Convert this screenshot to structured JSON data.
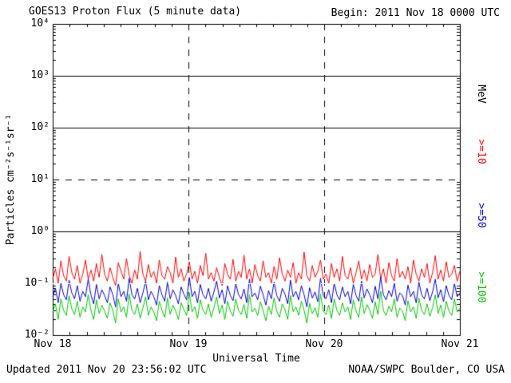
{
  "header": {
    "title": "GOES13 Proton Flux (5 minute data)",
    "begin": "Begin: 2011 Nov 18 0000 UTC"
  },
  "axes": {
    "y_label": "Particles cm⁻²s⁻¹sr⁻¹",
    "x_label": "Universal Time",
    "y_tick_labels": [
      "10⁴",
      "10³",
      "10²",
      "10¹",
      "10⁰",
      "10⁻¹",
      "10⁻²"
    ],
    "x_tick_labels": [
      "Nov 18",
      "Nov 19",
      "Nov 20",
      "Nov 21"
    ]
  },
  "right_labels": {
    "unit": "MeV",
    "items": [
      {
        "text": ">=10",
        "color": "#ff0000"
      },
      {
        "text": ">=50",
        "color": "#0000cc"
      },
      {
        "text": ">=100",
        "color": "#00c800"
      }
    ]
  },
  "footer": {
    "updated": "Updated 2011 Nov 20 23:56:02 UTC",
    "credit": "NOAA/SWPC Boulder, CO USA"
  },
  "chart_data": {
    "type": "line",
    "title": "GOES13 Proton Flux (5 minute data)",
    "xlabel": "Universal Time",
    "ylabel": "Particles cm-2 s-1 sr-1",
    "y_scale": "log",
    "ylim": [
      0.01,
      10000
    ],
    "x_ticks": [
      "Nov 18",
      "Nov 19",
      "Nov 20",
      "Nov 21"
    ],
    "y_gridlines": {
      "solid": [
        1000,
        100,
        1
      ],
      "dashed_black": [
        10
      ],
      "dashed_white_overlay": [
        0.1
      ]
    },
    "x_day_lines": [
      1,
      2
    ],
    "legend_position": "right",
    "series": [
      {
        "name": ">=10 MeV",
        "color": "#ff0000",
        "values": [
          0.12,
          0.19,
          0.1,
          0.27,
          0.14,
          0.11,
          0.33,
          0.16,
          0.12,
          0.22,
          0.1,
          0.15,
          0.28,
          0.12,
          0.18,
          0.11,
          0.24,
          0.13,
          0.36,
          0.15,
          0.11,
          0.2,
          0.13,
          0.09,
          0.25,
          0.17,
          0.12,
          0.3,
          0.14,
          0.1,
          0.18,
          0.12,
          0.41,
          0.15,
          0.11,
          0.23,
          0.13,
          0.17,
          0.1,
          0.28,
          0.14,
          0.12,
          0.21,
          0.16,
          0.1,
          0.32,
          0.13,
          0.19,
          0.11,
          0.15,
          0.26,
          0.12,
          0.17,
          0.1,
          0.22,
          0.14,
          0.38,
          0.12,
          0.16,
          0.11,
          0.2,
          0.13,
          0.09,
          0.24,
          0.15,
          0.12,
          0.29,
          0.11,
          0.17,
          0.13,
          0.35,
          0.12,
          0.19,
          0.1,
          0.23,
          0.14,
          0.11,
          0.27,
          0.13,
          0.16,
          0.1,
          0.21,
          0.12,
          0.31,
          0.15,
          0.11,
          0.18,
          0.13,
          0.25,
          0.1,
          0.16,
          0.12,
          0.4,
          0.14,
          0.11,
          0.22,
          0.13,
          0.17,
          0.28,
          0.12,
          0.15,
          0.1,
          0.24,
          0.13,
          0.19,
          0.11,
          0.33,
          0.14,
          0.12,
          0.2,
          0.1,
          0.16,
          0.27,
          0.12,
          0.18,
          0.11,
          0.23,
          0.13,
          0.15,
          0.36,
          0.12,
          0.19,
          0.1,
          0.25,
          0.14,
          0.11,
          0.3,
          0.13,
          0.17,
          0.12,
          0.21,
          0.1,
          0.28,
          0.15,
          0.11,
          0.19,
          0.13,
          0.24,
          0.1,
          0.16,
          0.34,
          0.12,
          0.18,
          0.11,
          0.26,
          0.13,
          0.15,
          0.22,
          0.11,
          0.17
        ]
      },
      {
        "name": ">=50 MeV",
        "color": "#0000cc",
        "values": [
          0.055,
          0.08,
          0.042,
          0.1,
          0.06,
          0.048,
          0.115,
          0.065,
          0.05,
          0.09,
          0.045,
          0.07,
          0.055,
          0.12,
          0.06,
          0.04,
          0.095,
          0.05,
          0.075,
          0.058,
          0.042,
          0.085,
          0.06,
          0.035,
          0.1,
          0.055,
          0.07,
          0.045,
          0.125,
          0.06,
          0.05,
          0.08,
          0.042,
          0.065,
          0.11,
          0.048,
          0.07,
          0.055,
          0.038,
          0.09,
          0.06,
          0.045,
          0.105,
          0.05,
          0.075,
          0.058,
          0.04,
          0.085,
          0.062,
          0.048,
          0.13,
          0.055,
          0.07,
          0.042,
          0.095,
          0.06,
          0.05,
          0.08,
          0.045,
          0.068,
          0.11,
          0.052,
          0.075,
          0.04,
          0.09,
          0.058,
          0.046,
          0.1,
          0.06,
          0.05,
          0.078,
          0.042,
          0.12,
          0.055,
          0.065,
          0.048,
          0.088,
          0.06,
          0.038,
          0.072,
          0.05,
          0.105,
          0.058,
          0.045,
          0.08,
          0.062,
          0.04,
          0.115,
          0.055,
          0.07,
          0.048,
          0.09,
          0.06,
          0.035,
          0.082,
          0.052,
          0.068,
          0.044,
          0.125,
          0.058,
          0.05,
          0.075,
          0.042,
          0.1,
          0.06,
          0.048,
          0.085,
          0.055,
          0.07,
          0.04,
          0.095,
          0.058,
          0.045,
          0.11,
          0.052,
          0.078,
          0.06,
          0.042,
          0.088,
          0.05,
          0.13,
          0.06,
          0.048,
          0.072,
          0.055,
          0.1,
          0.045,
          0.065,
          0.058,
          0.038,
          0.092,
          0.055,
          0.07,
          0.042,
          0.105,
          0.06,
          0.05,
          0.08,
          0.046,
          0.068,
          0.12,
          0.052,
          0.075,
          0.044,
          0.09,
          0.058,
          0.048,
          0.1,
          0.055,
          0.065
        ]
      },
      {
        "name": ">=100 MeV",
        "color": "#00c800",
        "values": [
          0.028,
          0.04,
          0.02,
          0.05,
          0.03,
          0.024,
          0.058,
          0.032,
          0.025,
          0.045,
          0.022,
          0.035,
          0.028,
          0.06,
          0.03,
          0.02,
          0.048,
          0.026,
          0.038,
          0.029,
          0.021,
          0.042,
          0.03,
          0.017,
          0.05,
          0.028,
          0.035,
          0.022,
          0.062,
          0.03,
          0.025,
          0.04,
          0.021,
          0.033,
          0.055,
          0.024,
          0.035,
          0.028,
          0.019,
          0.045,
          0.03,
          0.022,
          0.052,
          0.025,
          0.038,
          0.029,
          0.02,
          0.042,
          0.031,
          0.024,
          0.065,
          0.028,
          0.035,
          0.021,
          0.048,
          0.03,
          0.025,
          0.04,
          0.022,
          0.034,
          0.055,
          0.026,
          0.038,
          0.02,
          0.045,
          0.029,
          0.023,
          0.05,
          0.03,
          0.025,
          0.039,
          0.021,
          0.06,
          0.028,
          0.033,
          0.024,
          0.044,
          0.03,
          0.019,
          0.036,
          0.025,
          0.052,
          0.029,
          0.022,
          0.04,
          0.031,
          0.02,
          0.058,
          0.028,
          0.035,
          0.024,
          0.045,
          0.03,
          0.017,
          0.041,
          0.026,
          0.034,
          0.022,
          0.062,
          0.029,
          0.025,
          0.038,
          0.021,
          0.05,
          0.03,
          0.024,
          0.042,
          0.028,
          0.035,
          0.02,
          0.048,
          0.029,
          0.022,
          0.055,
          0.026,
          0.039,
          0.03,
          0.021,
          0.044,
          0.025,
          0.07,
          0.03,
          0.024,
          0.036,
          0.028,
          0.05,
          0.022,
          0.033,
          0.029,
          0.019,
          0.046,
          0.028,
          0.035,
          0.021,
          0.052,
          0.03,
          0.025,
          0.04,
          0.023,
          0.034,
          0.06,
          0.026,
          0.038,
          0.022,
          0.045,
          0.029,
          0.024,
          0.05,
          0.028,
          0.033
        ]
      }
    ]
  }
}
